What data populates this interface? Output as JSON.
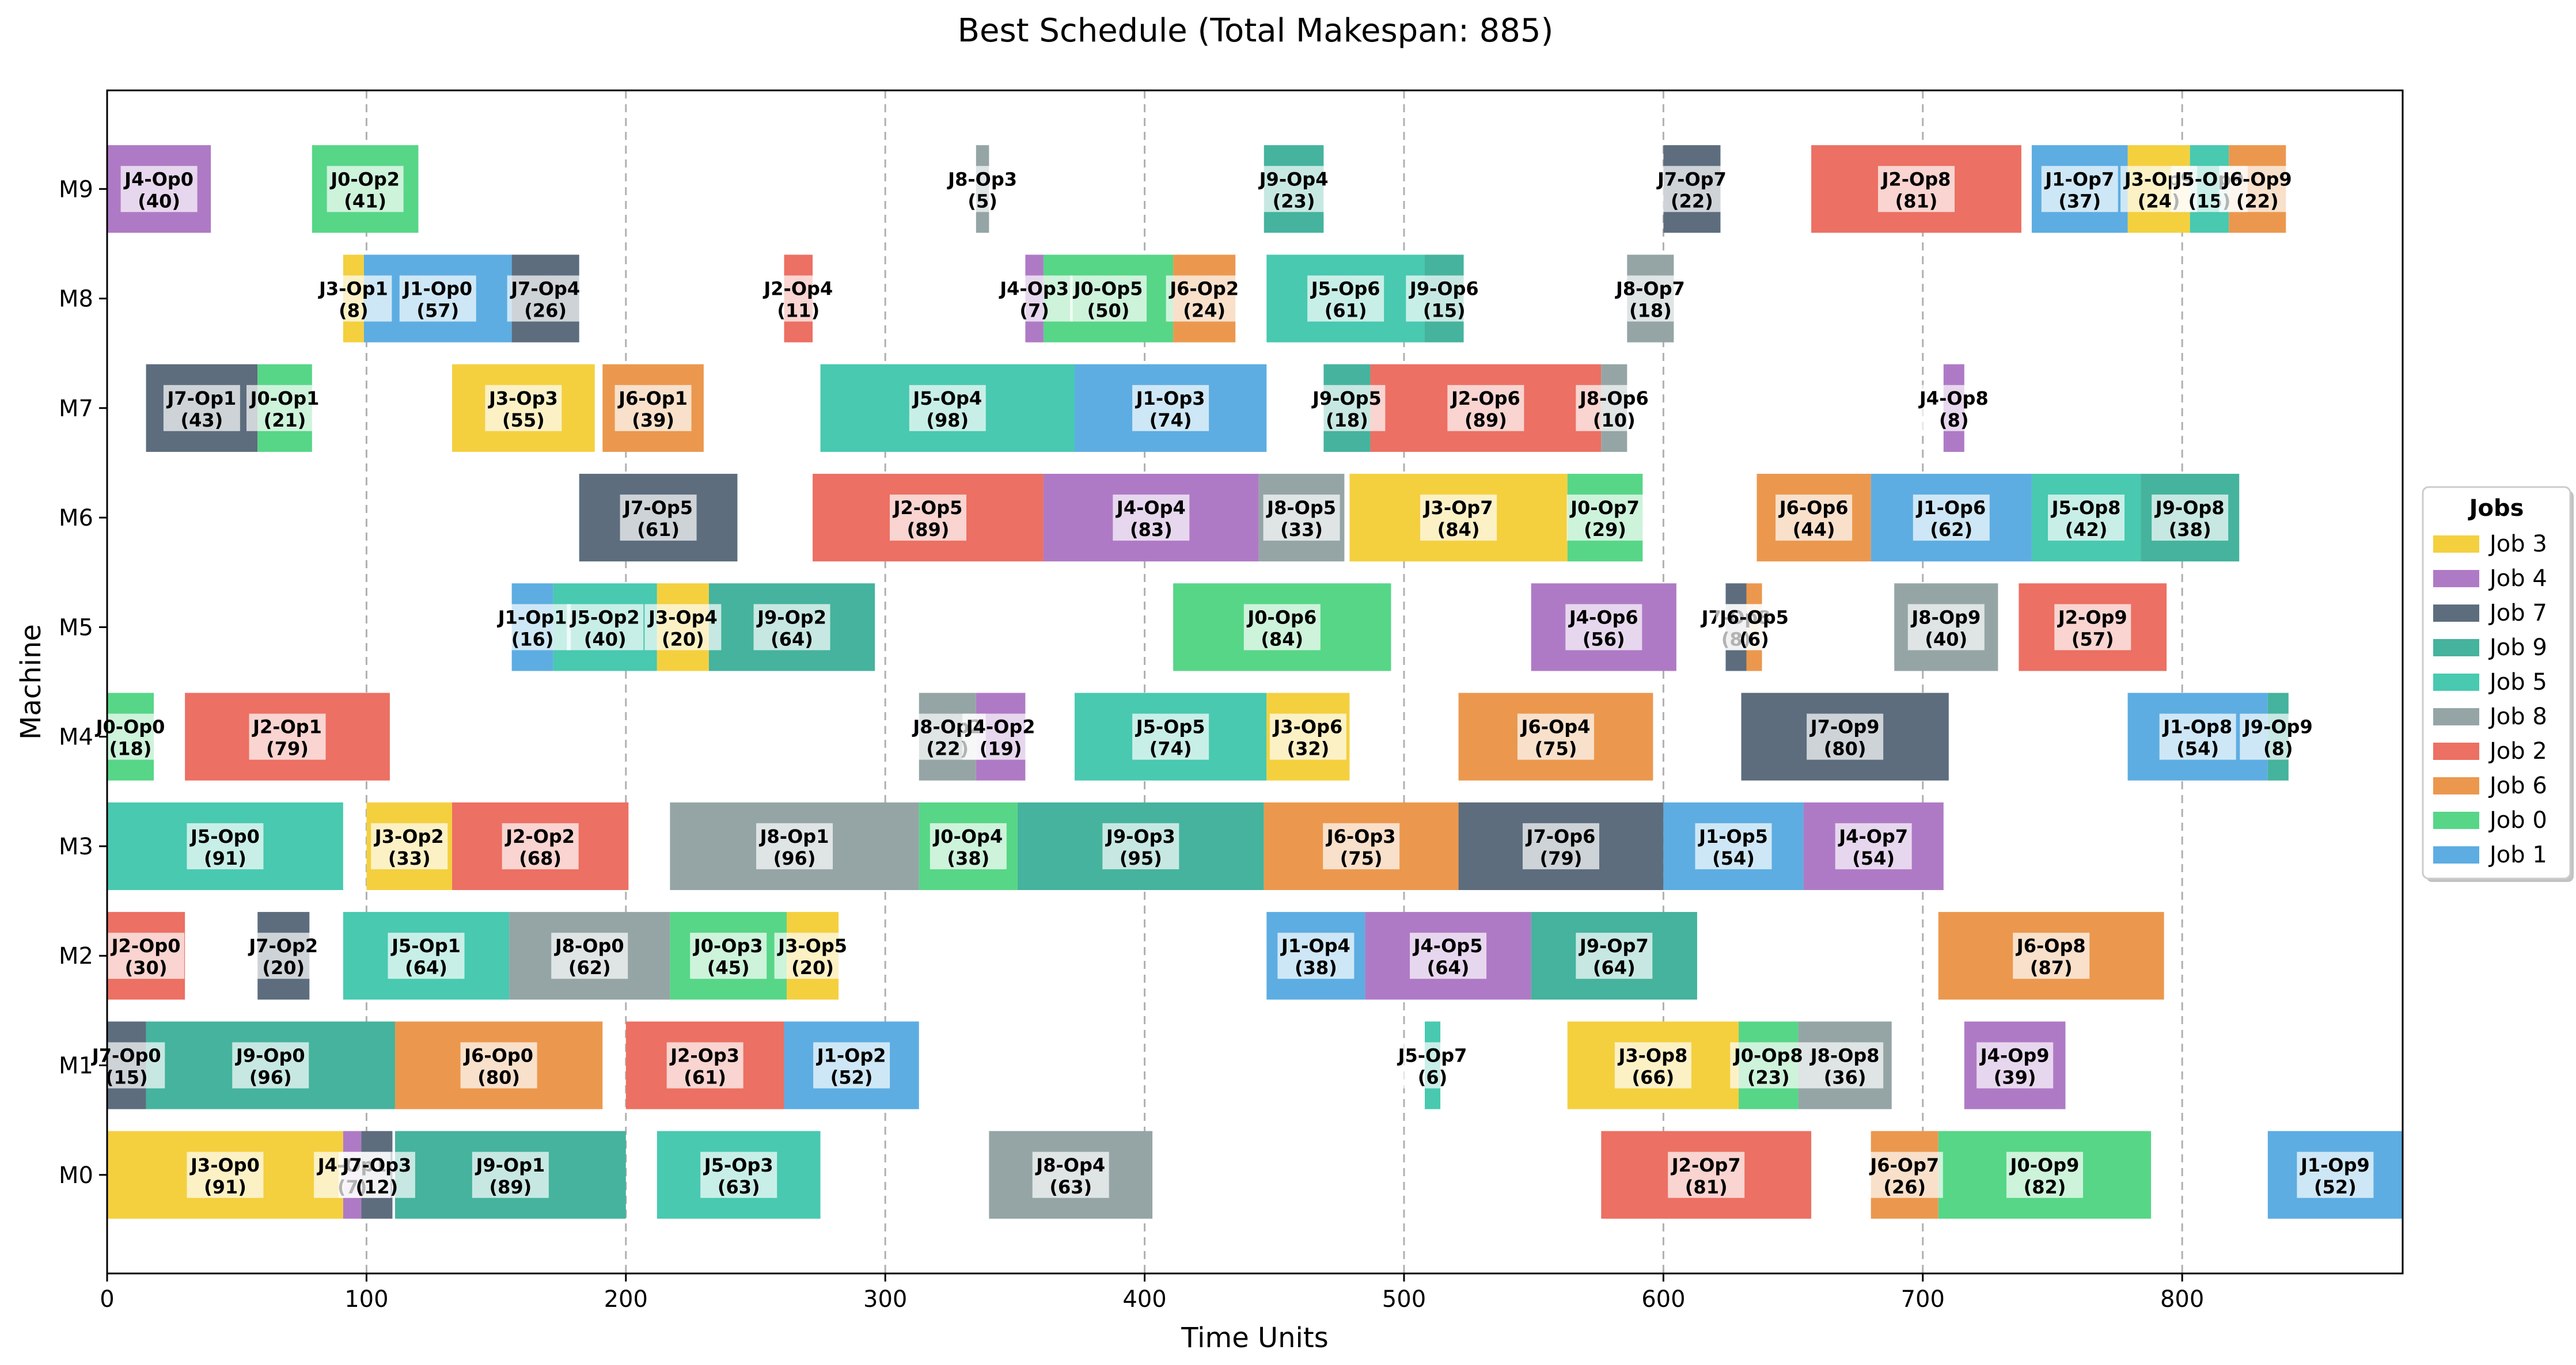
{
  "chart_data": {
    "type": "gantt",
    "title": "Best Schedule (Total Makespan: 885)",
    "xlabel": "Time Units",
    "ylabel": "Machine",
    "xlim": [
      0,
      885
    ],
    "xticks": [
      0,
      100,
      200,
      300,
      400,
      500,
      600,
      700,
      800
    ],
    "grid": "x",
    "machines": [
      "M0",
      "M1",
      "M2",
      "M3",
      "M4",
      "M5",
      "M6",
      "M7",
      "M8",
      "M9"
    ],
    "legend": {
      "title": "Jobs",
      "position": "center-right",
      "entries": [
        "Job 3",
        "Job 4",
        "Job 7",
        "Job 9",
        "Job 5",
        "Job 8",
        "Job 2",
        "Job 6",
        "Job 0",
        "Job 1"
      ]
    },
    "job_colors": {
      "0": "#57d687",
      "1": "#5dade2",
      "2": "#ec7063",
      "3": "#f4d03f",
      "4": "#af7ac5",
      "5": "#48c9b0",
      "6": "#eb984e",
      "7": "#5d6d7e",
      "8": "#95a5a6",
      "9": "#45b39d"
    },
    "tasks": [
      {
        "machine": "M0",
        "job": 3,
        "label": "J3-Op0",
        "start": 0,
        "duration": 91
      },
      {
        "machine": "M0",
        "job": 4,
        "label": "J4-Op1",
        "start": 91,
        "duration": 7
      },
      {
        "machine": "M0",
        "job": 7,
        "label": "J7-Op3",
        "start": 98,
        "duration": 12
      },
      {
        "machine": "M0",
        "job": 9,
        "label": "J9-Op1",
        "start": 111,
        "duration": 89
      },
      {
        "machine": "M0",
        "job": 5,
        "label": "J5-Op3",
        "start": 212,
        "duration": 63
      },
      {
        "machine": "M0",
        "job": 8,
        "label": "J8-Op4",
        "start": 340,
        "duration": 63
      },
      {
        "machine": "M0",
        "job": 2,
        "label": "J2-Op7",
        "start": 576,
        "duration": 81
      },
      {
        "machine": "M0",
        "job": 6,
        "label": "J6-Op7",
        "start": 680,
        "duration": 26
      },
      {
        "machine": "M0",
        "job": 0,
        "label": "J0-Op9",
        "start": 706,
        "duration": 82
      },
      {
        "machine": "M0",
        "job": 1,
        "label": "J1-Op9",
        "start": 833,
        "duration": 52
      },
      {
        "machine": "M1",
        "job": 7,
        "label": "J7-Op0",
        "start": 0,
        "duration": 15
      },
      {
        "machine": "M1",
        "job": 9,
        "label": "J9-Op0",
        "start": 15,
        "duration": 96
      },
      {
        "machine": "M1",
        "job": 6,
        "label": "J6-Op0",
        "start": 111,
        "duration": 80
      },
      {
        "machine": "M1",
        "job": 2,
        "label": "J2-Op3",
        "start": 200,
        "duration": 61
      },
      {
        "machine": "M1",
        "job": 1,
        "label": "J1-Op2",
        "start": 261,
        "duration": 52
      },
      {
        "machine": "M1",
        "job": 5,
        "label": "J5-Op7",
        "start": 508,
        "duration": 6
      },
      {
        "machine": "M1",
        "job": 3,
        "label": "J3-Op8",
        "start": 563,
        "duration": 66
      },
      {
        "machine": "M1",
        "job": 0,
        "label": "J0-Op8",
        "start": 629,
        "duration": 23
      },
      {
        "machine": "M1",
        "job": 8,
        "label": "J8-Op8",
        "start": 652,
        "duration": 36
      },
      {
        "machine": "M1",
        "job": 4,
        "label": "J4-Op9",
        "start": 716,
        "duration": 39
      },
      {
        "machine": "M2",
        "job": 2,
        "label": "J2-Op0",
        "start": 0,
        "duration": 30
      },
      {
        "machine": "M2",
        "job": 7,
        "label": "J7-Op2",
        "start": 58,
        "duration": 20
      },
      {
        "machine": "M2",
        "job": 5,
        "label": "J5-Op1",
        "start": 91,
        "duration": 64
      },
      {
        "machine": "M2",
        "job": 8,
        "label": "J8-Op0",
        "start": 155,
        "duration": 62
      },
      {
        "machine": "M2",
        "job": 0,
        "label": "J0-Op3",
        "start": 217,
        "duration": 45
      },
      {
        "machine": "M2",
        "job": 3,
        "label": "J3-Op5",
        "start": 262,
        "duration": 20
      },
      {
        "machine": "M2",
        "job": 1,
        "label": "J1-Op4",
        "start": 447,
        "duration": 38
      },
      {
        "machine": "M2",
        "job": 4,
        "label": "J4-Op5",
        "start": 485,
        "duration": 64
      },
      {
        "machine": "M2",
        "job": 9,
        "label": "J9-Op7",
        "start": 549,
        "duration": 64
      },
      {
        "machine": "M2",
        "job": 6,
        "label": "J6-Op8",
        "start": 706,
        "duration": 87
      },
      {
        "machine": "M3",
        "job": 5,
        "label": "J5-Op0",
        "start": 0,
        "duration": 91
      },
      {
        "machine": "M3",
        "job": 3,
        "label": "J3-Op2",
        "start": 100,
        "duration": 33
      },
      {
        "machine": "M3",
        "job": 2,
        "label": "J2-Op2",
        "start": 133,
        "duration": 68
      },
      {
        "machine": "M3",
        "job": 8,
        "label": "J8-Op1",
        "start": 217,
        "duration": 96
      },
      {
        "machine": "M3",
        "job": 0,
        "label": "J0-Op4",
        "start": 313,
        "duration": 38
      },
      {
        "machine": "M3",
        "job": 9,
        "label": "J9-Op3",
        "start": 351,
        "duration": 95
      },
      {
        "machine": "M3",
        "job": 6,
        "label": "J6-Op3",
        "start": 446,
        "duration": 75
      },
      {
        "machine": "M3",
        "job": 7,
        "label": "J7-Op6",
        "start": 521,
        "duration": 79
      },
      {
        "machine": "M3",
        "job": 1,
        "label": "J1-Op5",
        "start": 600,
        "duration": 54
      },
      {
        "machine": "M3",
        "job": 4,
        "label": "J4-Op7",
        "start": 654,
        "duration": 54
      },
      {
        "machine": "M4",
        "job": 0,
        "label": "J0-Op0",
        "start": 0,
        "duration": 18
      },
      {
        "machine": "M4",
        "job": 2,
        "label": "J2-Op1",
        "start": 30,
        "duration": 79
      },
      {
        "machine": "M4",
        "job": 8,
        "label": "J8-Op2",
        "start": 313,
        "duration": 22
      },
      {
        "machine": "M4",
        "job": 4,
        "label": "J4-Op2",
        "start": 335,
        "duration": 19
      },
      {
        "machine": "M4",
        "job": 5,
        "label": "J5-Op5",
        "start": 373,
        "duration": 74
      },
      {
        "machine": "M4",
        "job": 3,
        "label": "J3-Op6",
        "start": 447,
        "duration": 32
      },
      {
        "machine": "M4",
        "job": 6,
        "label": "J6-Op4",
        "start": 521,
        "duration": 75
      },
      {
        "machine": "M4",
        "job": 7,
        "label": "J7-Op9",
        "start": 630,
        "duration": 80
      },
      {
        "machine": "M4",
        "job": 1,
        "label": "J1-Op8",
        "start": 779,
        "duration": 54
      },
      {
        "machine": "M4",
        "job": 9,
        "label": "J9-Op9",
        "start": 833,
        "duration": 8
      },
      {
        "machine": "M5",
        "job": 1,
        "label": "J1-Op1",
        "start": 156,
        "duration": 16
      },
      {
        "machine": "M5",
        "job": 5,
        "label": "J5-Op2",
        "start": 172,
        "duration": 40
      },
      {
        "machine": "M5",
        "job": 3,
        "label": "J3-Op4",
        "start": 212,
        "duration": 20
      },
      {
        "machine": "M5",
        "job": 9,
        "label": "J9-Op2",
        "start": 232,
        "duration": 64
      },
      {
        "machine": "M5",
        "job": 0,
        "label": "J0-Op6",
        "start": 411,
        "duration": 84
      },
      {
        "machine": "M5",
        "job": 4,
        "label": "J4-Op6",
        "start": 549,
        "duration": 56
      },
      {
        "machine": "M5",
        "job": 7,
        "label": "J7-Op8",
        "start": 624,
        "duration": 8
      },
      {
        "machine": "M5",
        "job": 6,
        "label": "J6-Op5",
        "start": 632,
        "duration": 6
      },
      {
        "machine": "M5",
        "job": 8,
        "label": "J8-Op9",
        "start": 689,
        "duration": 40
      },
      {
        "machine": "M5",
        "job": 2,
        "label": "J2-Op9",
        "start": 737,
        "duration": 57
      },
      {
        "machine": "M6",
        "job": 7,
        "label": "J7-Op5",
        "start": 182,
        "duration": 61
      },
      {
        "machine": "M6",
        "job": 2,
        "label": "J2-Op5",
        "start": 272,
        "duration": 89
      },
      {
        "machine": "M6",
        "job": 4,
        "label": "J4-Op4",
        "start": 361,
        "duration": 83
      },
      {
        "machine": "M6",
        "job": 8,
        "label": "J8-Op5",
        "start": 444,
        "duration": 33
      },
      {
        "machine": "M6",
        "job": 3,
        "label": "J3-Op7",
        "start": 479,
        "duration": 84
      },
      {
        "machine": "M6",
        "job": 0,
        "label": "J0-Op7",
        "start": 563,
        "duration": 29
      },
      {
        "machine": "M6",
        "job": 6,
        "label": "J6-Op6",
        "start": 636,
        "duration": 44
      },
      {
        "machine": "M6",
        "job": 1,
        "label": "J1-Op6",
        "start": 680,
        "duration": 62
      },
      {
        "machine": "M6",
        "job": 5,
        "label": "J5-Op8",
        "start": 742,
        "duration": 42
      },
      {
        "machine": "M6",
        "job": 9,
        "label": "J9-Op8",
        "start": 784,
        "duration": 38
      },
      {
        "machine": "M7",
        "job": 7,
        "label": "J7-Op1",
        "start": 15,
        "duration": 43
      },
      {
        "machine": "M7",
        "job": 0,
        "label": "J0-Op1",
        "start": 58,
        "duration": 21
      },
      {
        "machine": "M7",
        "job": 3,
        "label": "J3-Op3",
        "start": 133,
        "duration": 55
      },
      {
        "machine": "M7",
        "job": 6,
        "label": "J6-Op1",
        "start": 191,
        "duration": 39
      },
      {
        "machine": "M7",
        "job": 5,
        "label": "J5-Op4",
        "start": 275,
        "duration": 98
      },
      {
        "machine": "M7",
        "job": 1,
        "label": "J1-Op3",
        "start": 373,
        "duration": 74
      },
      {
        "machine": "M7",
        "job": 9,
        "label": "J9-Op5",
        "start": 469,
        "duration": 18
      },
      {
        "machine": "M7",
        "job": 2,
        "label": "J2-Op6",
        "start": 487,
        "duration": 89
      },
      {
        "machine": "M7",
        "job": 8,
        "label": "J8-Op6",
        "start": 576,
        "duration": 10
      },
      {
        "machine": "M7",
        "job": 4,
        "label": "J4-Op8",
        "start": 708,
        "duration": 8
      },
      {
        "machine": "M8",
        "job": 3,
        "label": "J3-Op1",
        "start": 91,
        "duration": 8
      },
      {
        "machine": "M8",
        "job": 1,
        "label": "J1-Op0",
        "start": 99,
        "duration": 57
      },
      {
        "machine": "M8",
        "job": 7,
        "label": "J7-Op4",
        "start": 156,
        "duration": 26
      },
      {
        "machine": "M8",
        "job": 2,
        "label": "J2-Op4",
        "start": 261,
        "duration": 11
      },
      {
        "machine": "M8",
        "job": 4,
        "label": "J4-Op3",
        "start": 354,
        "duration": 7
      },
      {
        "machine": "M8",
        "job": 0,
        "label": "J0-Op5",
        "start": 361,
        "duration": 50
      },
      {
        "machine": "M8",
        "job": 6,
        "label": "J6-Op2",
        "start": 411,
        "duration": 24
      },
      {
        "machine": "M8",
        "job": 5,
        "label": "J5-Op6",
        "start": 447,
        "duration": 61
      },
      {
        "machine": "M8",
        "job": 9,
        "label": "J9-Op6",
        "start": 508,
        "duration": 15
      },
      {
        "machine": "M8",
        "job": 8,
        "label": "J8-Op7",
        "start": 586,
        "duration": 18
      },
      {
        "machine": "M9",
        "job": 4,
        "label": "J4-Op0",
        "start": 0,
        "duration": 40
      },
      {
        "machine": "M9",
        "job": 0,
        "label": "J0-Op2",
        "start": 79,
        "duration": 41
      },
      {
        "machine": "M9",
        "job": 8,
        "label": "J8-Op3",
        "start": 335,
        "duration": 5
      },
      {
        "machine": "M9",
        "job": 9,
        "label": "J9-Op4",
        "start": 446,
        "duration": 23
      },
      {
        "machine": "M9",
        "job": 7,
        "label": "J7-Op7",
        "start": 600,
        "duration": 22
      },
      {
        "machine": "M9",
        "job": 2,
        "label": "J2-Op8",
        "start": 657,
        "duration": 81
      },
      {
        "machine": "M9",
        "job": 1,
        "label": "J1-Op7",
        "start": 742,
        "duration": 37
      },
      {
        "machine": "M9",
        "job": 3,
        "label": "J3-Op9",
        "start": 779,
        "duration": 24
      },
      {
        "machine": "M9",
        "job": 5,
        "label": "J5-Op9",
        "start": 803,
        "duration": 15
      },
      {
        "machine": "M9",
        "job": 6,
        "label": "J6-Op9",
        "start": 818,
        "duration": 22
      }
    ]
  }
}
